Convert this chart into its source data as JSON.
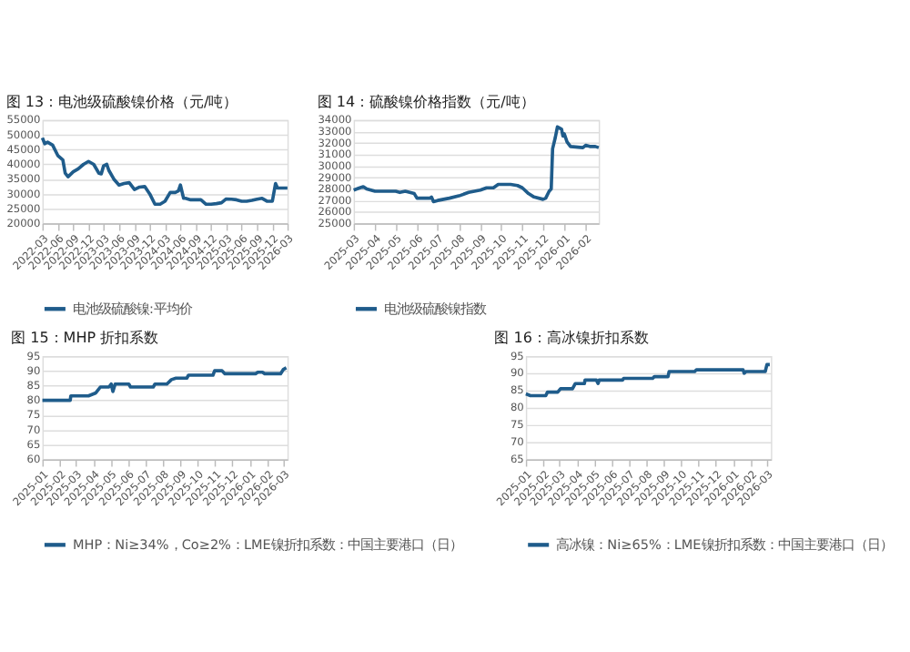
{
  "chart_data": [
    {
      "type": "line",
      "title": "图 13：电池级硫酸镍价格（元/吨）",
      "grid": "y",
      "legend": "bottom",
      "x": [
        "2022-03-01",
        "2022-03-15",
        "2022-04-01",
        "2022-05-01",
        "2022-06-01",
        "2022-07-01",
        "2022-07-15",
        "2022-08-01",
        "2022-09-01",
        "2022-10-01",
        "2022-11-01",
        "2022-12-01",
        "2023-01-01",
        "2023-02-01",
        "2023-02-15",
        "2023-03-01",
        "2023-03-20",
        "2023-04-01",
        "2023-05-01",
        "2023-06-01",
        "2023-07-01",
        "2023-08-01",
        "2023-09-01",
        "2023-10-01",
        "2023-11-01",
        "2023-12-01",
        "2024-01-01",
        "2024-02-01",
        "2024-03-01",
        "2024-04-01",
        "2024-05-01",
        "2024-05-20",
        "2024-06-01",
        "2024-06-20",
        "2024-07-01",
        "2024-08-01",
        "2024-09-01",
        "2024-10-01",
        "2024-11-01",
        "2024-12-01",
        "2025-01-01",
        "2025-02-01",
        "2025-03-01",
        "2025-04-01",
        "2025-05-01",
        "2025-06-01",
        "2025-07-01",
        "2025-08-01",
        "2025-09-01",
        "2025-10-01",
        "2025-11-01",
        "2025-12-01",
        "2025-12-20",
        "2026-01-01",
        "2026-02-01",
        "2026-03-01"
      ],
      "series": [
        {
          "name": "电池级硫酸镍:平均价",
          "color": "#1f5c8b",
          "values": [
            49000,
            47000,
            47500,
            46500,
            43000,
            41500,
            37000,
            35800,
            37500,
            38500,
            40000,
            41000,
            40000,
            37000,
            36800,
            39500,
            40000,
            38000,
            35000,
            33000,
            33500,
            33800,
            31500,
            32300,
            32500,
            30000,
            26500,
            26500,
            27500,
            30500,
            30500,
            31000,
            33000,
            28500,
            28500,
            28000,
            28000,
            28000,
            26500,
            26500,
            26700,
            27000,
            28300,
            28200,
            28000,
            27500,
            27500,
            27800,
            28200,
            28500,
            27500,
            27500,
            33500,
            32000,
            32000,
            32000
          ]
        }
      ],
      "xlim": [
        "2022-03-01",
        "2026-03-01"
      ],
      "xticks": [
        "2022-03",
        "2022-06",
        "2022-09",
        "2022-12",
        "2023-03",
        "2023-06",
        "2023-09",
        "2023-12",
        "2024-03",
        "2024-06",
        "2024-09",
        "2024-12",
        "2025-03",
        "2025-06",
        "2025-09",
        "2025-12",
        "2026-03"
      ],
      "ylim": [
        20000,
        55000
      ],
      "yticks": [
        20000,
        25000,
        30000,
        35000,
        40000,
        45000,
        50000,
        55000
      ]
    },
    {
      "type": "line",
      "title": "图 14：硫酸镍价格指数（元/吨）",
      "grid": "y",
      "legend": "bottom",
      "x": [
        "2025-03-01",
        "2025-03-10",
        "2025-03-15",
        "2025-03-20",
        "2025-04-01",
        "2025-04-20",
        "2025-05-01",
        "2025-05-07",
        "2025-05-15",
        "2025-05-28",
        "2025-06-01",
        "2025-06-20",
        "2025-06-22",
        "2025-06-25",
        "2025-07-01",
        "2025-07-18",
        "2025-08-01",
        "2025-08-15",
        "2025-09-01",
        "2025-09-10",
        "2025-09-20",
        "2025-09-27",
        "2025-10-15",
        "2025-10-25",
        "2025-11-01",
        "2025-11-10",
        "2025-11-18",
        "2025-12-01",
        "2025-12-05",
        "2025-12-10",
        "2025-12-13",
        "2025-12-15",
        "2025-12-19",
        "2025-12-22",
        "2025-12-28",
        "2025-12-30",
        "2026-01-01",
        "2026-01-05",
        "2026-01-10",
        "2026-01-28",
        "2026-02-01",
        "2026-02-07",
        "2026-02-15",
        "2026-02-20"
      ],
      "series": [
        {
          "name": "电池级硫酸镍指数",
          "color": "#1f5c8b",
          "values": [
            27900,
            28100,
            28200,
            28000,
            27800,
            27800,
            27800,
            27700,
            27800,
            27600,
            27200,
            27200,
            27300,
            26900,
            27000,
            27200,
            27400,
            27700,
            27900,
            28100,
            28100,
            28400,
            28400,
            28300,
            28100,
            27600,
            27300,
            27100,
            27200,
            27800,
            28000,
            31500,
            32500,
            33400,
            33200,
            32600,
            32800,
            32100,
            31700,
            31600,
            31800,
            31700,
            31700,
            31600
          ]
        }
      ],
      "xlim": [
        "2025-03-01",
        "2026-02-20"
      ],
      "xticks": [
        "2025-03",
        "2025-04",
        "2025-05",
        "2025-06",
        "2025-07",
        "2025-08",
        "2025-09",
        "2025-10",
        "2025-11",
        "2025-12",
        "2026-01",
        "2026-02"
      ],
      "ylim": [
        25000,
        34000
      ],
      "yticks": [
        25000,
        26000,
        27000,
        28000,
        29000,
        30000,
        31000,
        32000,
        33000,
        34000
      ]
    },
    {
      "type": "line",
      "title": "图 15：MHP 折扣系数",
      "grid": "y",
      "legend": "bottom",
      "x": [
        "2025-01-01",
        "2025-02-19",
        "2025-02-20",
        "2025-03-23",
        "2025-04-05",
        "2025-04-13",
        "2025-04-28",
        "2025-05-02",
        "2025-05-05",
        "2025-05-09",
        "2025-06-02",
        "2025-06-05",
        "2025-07-15",
        "2025-07-18",
        "2025-08-08",
        "2025-08-16",
        "2025-08-24",
        "2025-09-12",
        "2025-09-15",
        "2025-10-28",
        "2025-10-31",
        "2025-11-13",
        "2025-11-18",
        "2026-01-11",
        "2026-01-15",
        "2026-01-23",
        "2026-01-27",
        "2026-02-24",
        "2026-03-01",
        "2026-03-06"
      ],
      "series": [
        {
          "name": "MHP：Ni≥34%，Co≥2%：LME镍折扣系数：中国主要港口（日）",
          "color": "#1f5c8b",
          "values": [
            80,
            80,
            81.5,
            81.5,
            82.5,
            84.5,
            84.5,
            85.5,
            83,
            85.5,
            85.5,
            84.5,
            84.5,
            85.5,
            85.5,
            87,
            87.5,
            87.5,
            88.5,
            88.5,
            90,
            90,
            89,
            89,
            89.5,
            89.5,
            89,
            89,
            90.5,
            91
          ]
        }
      ],
      "xlim": [
        "2025-01-01",
        "2026-03-08"
      ],
      "xticks": [
        "2025-01",
        "2025-02",
        "2025-03",
        "2025-04",
        "2025-05",
        "2025-06",
        "2025-07",
        "2025-08",
        "2025-09",
        "2025-10",
        "2025-11",
        "2025-12",
        "2026-01",
        "2026-02",
        "2026-03"
      ],
      "ylim": [
        60,
        95
      ],
      "yticks": [
        60,
        65,
        70,
        75,
        80,
        85,
        90,
        95
      ]
    },
    {
      "type": "line",
      "title": "图 16：高冰镍折扣系数",
      "grid": "y",
      "legend": "bottom",
      "x": [
        "2025-01-01",
        "2025-01-09",
        "2025-02-05",
        "2025-02-08",
        "2025-02-26",
        "2025-03-03",
        "2025-03-24",
        "2025-03-29",
        "2025-04-14",
        "2025-04-15",
        "2025-05-05",
        "2025-05-08",
        "2025-05-10",
        "2025-06-20",
        "2025-06-22",
        "2025-08-12",
        "2025-08-15",
        "2025-09-08",
        "2025-09-10",
        "2025-10-25",
        "2025-10-28",
        "2026-01-18",
        "2026-01-20",
        "2026-01-23",
        "2026-02-26",
        "2026-03-01",
        "2026-03-06"
      ],
      "series": [
        {
          "name": "高冰镍：Ni≥65%：LME镍折扣系数：中国主要港口（日）",
          "color": "#1f5c8b",
          "values": [
            84,
            83.5,
            83.5,
            84.5,
            84.5,
            85.5,
            85.5,
            87,
            87,
            88,
            88,
            87,
            88,
            88,
            88.5,
            88.5,
            89,
            89,
            90.5,
            90.5,
            91,
            91,
            90,
            90.5,
            90.5,
            92.5,
            92.5
          ]
        }
      ],
      "xlim": [
        "2025-01-01",
        "2026-03-08"
      ],
      "xticks": [
        "2025-01",
        "2025-02",
        "2025-03",
        "2025-04",
        "2025-05",
        "2025-06",
        "2025-07",
        "2025-08",
        "2025-09",
        "2025-10",
        "2025-11",
        "2025-12",
        "2026-01",
        "2026-02",
        "2026-03"
      ],
      "ylim": [
        65,
        95
      ],
      "yticks": [
        65,
        70,
        75,
        80,
        85,
        90,
        95
      ]
    }
  ]
}
